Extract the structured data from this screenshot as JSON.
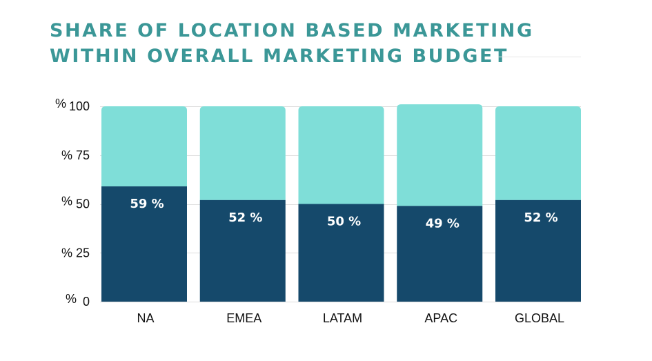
{
  "title_lines": [
    "SHARE OF LOCATION BASED MARKETING",
    "WITHIN OVERALL MARKETING BUDGET"
  ],
  "colors": {
    "title": "#3b9797",
    "share": "#15496b",
    "remainder": "#7fded8",
    "grid": "#dcdcdc"
  },
  "chart_data": {
    "type": "bar",
    "stacked": true,
    "categories": [
      "NA",
      "EMEA",
      "LATAM",
      "APAC",
      "GLOBAL"
    ],
    "values": [
      59,
      52,
      50,
      49,
      52
    ],
    "total": [
      100,
      100,
      100,
      101,
      100
    ],
    "data_labels": [
      "59 %",
      "52 %",
      "50 %",
      "49 %",
      "52 %"
    ],
    "y_ticks": [
      0,
      25,
      50,
      75,
      100
    ],
    "y_unit": "%",
    "ylim": [
      0,
      100
    ],
    "grid": true
  }
}
